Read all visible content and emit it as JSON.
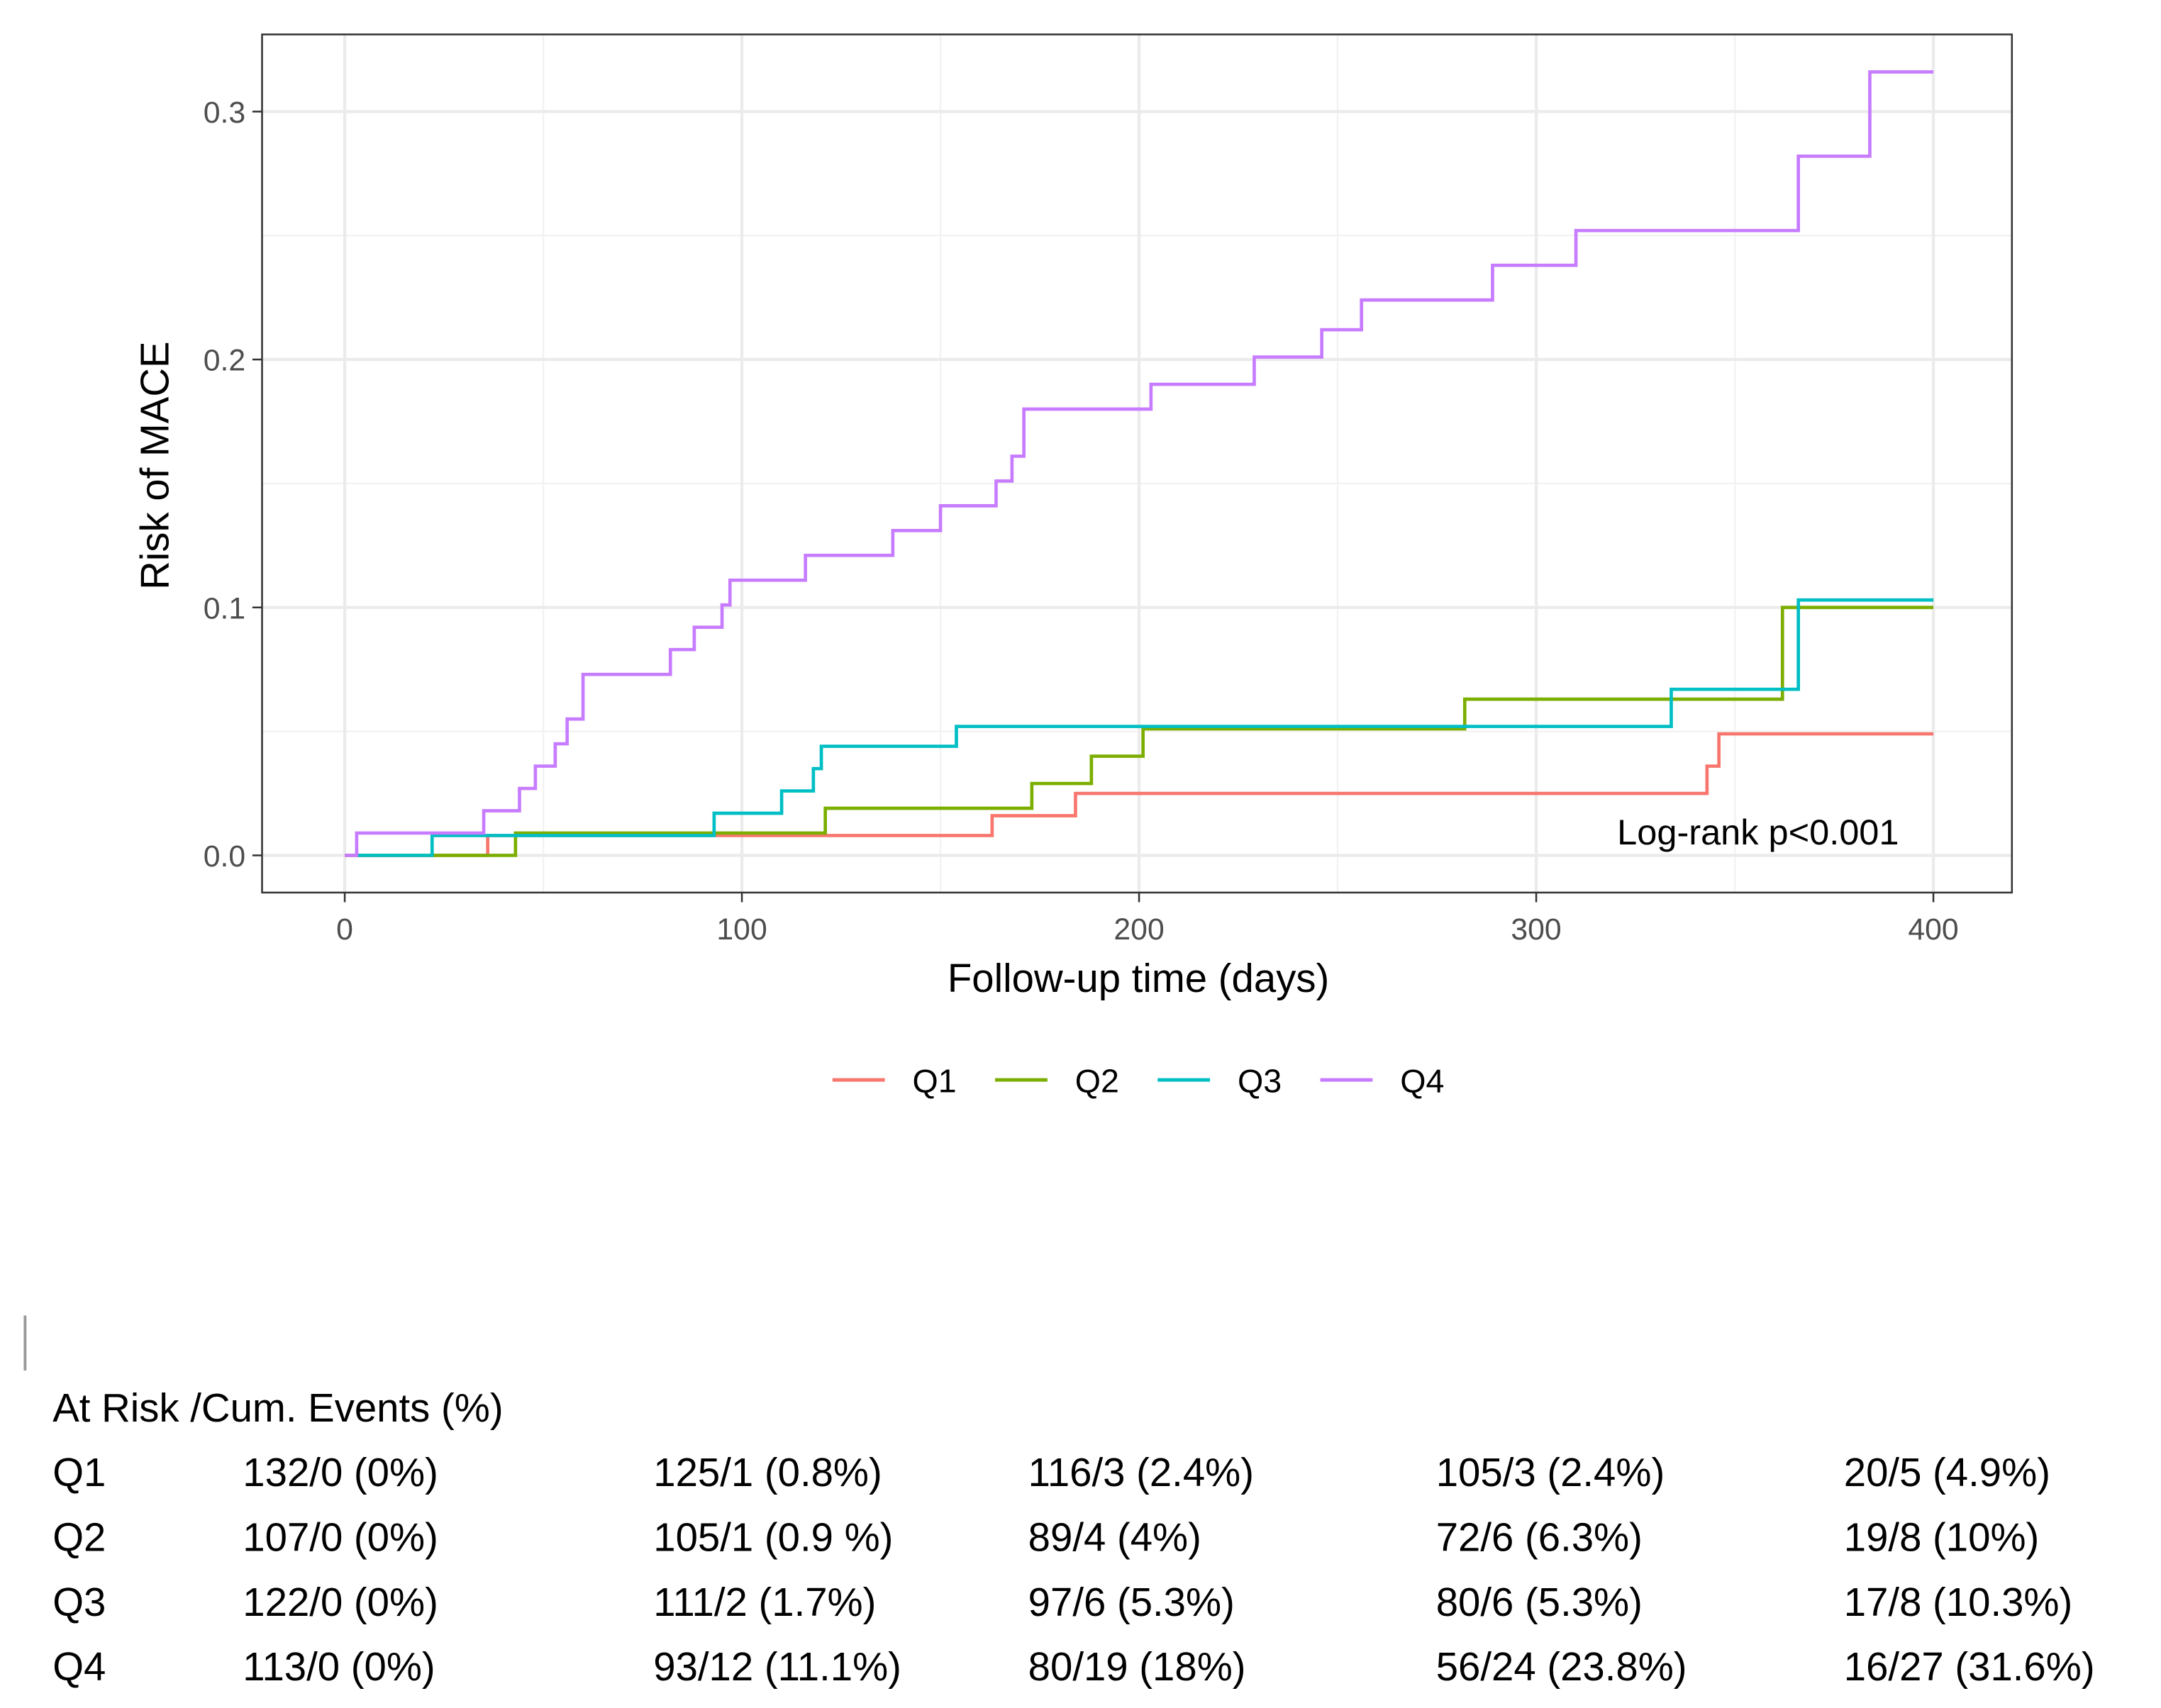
{
  "chart_data": {
    "type": "line",
    "step": true,
    "xlabel": "Follow-up time (days)",
    "ylabel": "Risk of MACE",
    "xlim": [
      -20,
      420
    ],
    "ylim": [
      -0.015,
      0.331
    ],
    "xticks": [
      0,
      100,
      200,
      300,
      400
    ],
    "yticks": [
      0.0,
      0.1,
      0.2,
      0.3
    ],
    "ytick_labels": [
      "0.0",
      "0.1",
      "0.2",
      "0.3"
    ],
    "grid": true,
    "legend_position": "bottom",
    "annotation": "Log-rank p<0.001",
    "series": [
      {
        "name": "Q1",
        "color": "#F8766D",
        "x": [
          0,
          36,
          163,
          184,
          343,
          346,
          400
        ],
        "y": [
          0,
          0.008,
          0.016,
          0.025,
          0.036,
          0.049,
          0.049
        ]
      },
      {
        "name": "Q2",
        "color": "#7CAE00",
        "x": [
          0,
          43,
          121,
          173,
          188,
          201,
          282,
          362,
          400
        ],
        "y": [
          0,
          0.009,
          0.019,
          0.029,
          0.04,
          0.051,
          0.063,
          0.1,
          0.1
        ]
      },
      {
        "name": "Q3",
        "color": "#00BFC4",
        "x": [
          3,
          22,
          93,
          110,
          118,
          120,
          154,
          334,
          366,
          400
        ],
        "y": [
          0,
          0.008,
          0.017,
          0.026,
          0.035,
          0.044,
          0.052,
          0.067,
          0.103,
          0.103
        ]
      },
      {
        "name": "Q4",
        "color": "#C77CFF",
        "x": [
          0,
          3,
          35,
          44,
          48,
          53,
          56,
          60,
          82,
          88,
          95,
          97,
          116,
          138,
          150,
          164,
          168,
          171,
          203,
          229,
          246,
          256,
          289,
          310,
          366,
          384,
          400
        ],
        "y": [
          0,
          0.009,
          0.018,
          0.027,
          0.036,
          0.045,
          0.055,
          0.073,
          0.083,
          0.092,
          0.101,
          0.111,
          0.121,
          0.131,
          0.141,
          0.151,
          0.161,
          0.18,
          0.19,
          0.201,
          0.212,
          0.224,
          0.238,
          0.252,
          0.282,
          0.316,
          0.316
        ]
      }
    ]
  },
  "risk_table": {
    "header": "At Risk /Cum. Events  (%)",
    "rows": [
      {
        "label": "Q1",
        "cells": [
          "132/0 (0%)",
          "125/1 (0.8%)",
          "116/3 (2.4%)",
          "105/3 (2.4%)",
          "20/5 (4.9%)"
        ]
      },
      {
        "label": "Q2",
        "cells": [
          "107/0 (0%)",
          "105/1 (0.9 %)",
          "89/4 (4%)",
          "72/6 (6.3%)",
          "19/8 (10%)"
        ]
      },
      {
        "label": "Q3",
        "cells": [
          "122/0 (0%)",
          "111/2 (1.7%)",
          "97/6 (5.3%)",
          "80/6 (5.3%)",
          "17/8 (10.3%)"
        ]
      },
      {
        "label": "Q4",
        "cells": [
          "113/0 (0%)",
          "93/12 (11.1%)",
          "80/19 (18%)",
          "56/24 (23.8%)",
          "16/27 (31.6%)"
        ]
      }
    ]
  }
}
